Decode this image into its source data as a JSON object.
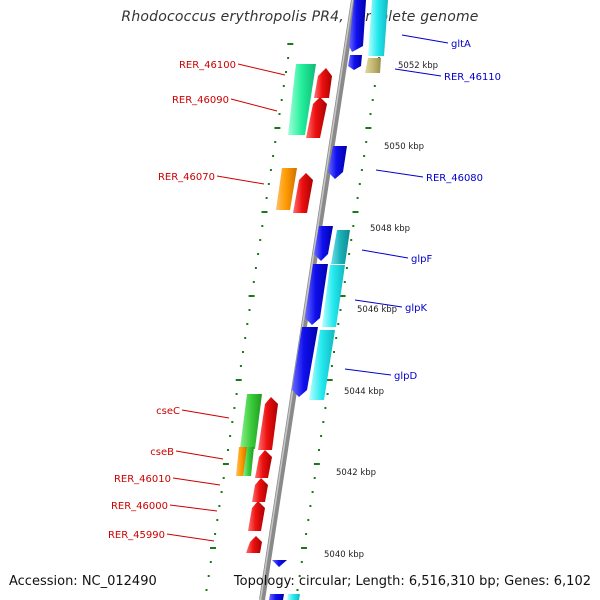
{
  "title": "Rhodococcus erythropolis PR4, complete genome",
  "footer": {
    "accession": "Accession: NC_012490",
    "stats": "Topology: circular; Length: 6,516,310 bp; Genes: 6,102"
  },
  "colors": {
    "forward_label": "#0000cc",
    "reverse_label": "#cc0000",
    "backbone": "#888888",
    "ticks": "#1a7a1a"
  },
  "kbp_labels": [
    "5052 kbp",
    "5050 kbp",
    "5048 kbp",
    "5046 kbp",
    "5044 kbp",
    "5042 kbp",
    "5040 kbp"
  ],
  "genes_left": [
    {
      "id": "RER_46100",
      "label": "RER_46100"
    },
    {
      "id": "RER_46090",
      "label": "RER_46090"
    },
    {
      "id": "RER_46070",
      "label": "RER_46070"
    },
    {
      "id": "cseC",
      "label": "cseC"
    },
    {
      "id": "cseB",
      "label": "cseB"
    },
    {
      "id": "RER_46010",
      "label": "RER_46010"
    },
    {
      "id": "RER_46000",
      "label": "RER_46000"
    },
    {
      "id": "RER_45990",
      "label": "RER_45990"
    }
  ],
  "genes_right": [
    {
      "id": "gltA",
      "label": "gltA"
    },
    {
      "id": "RER_46110",
      "label": "RER_46110"
    },
    {
      "id": "RER_46080",
      "label": "RER_46080"
    },
    {
      "id": "glpF",
      "label": "glpF"
    },
    {
      "id": "glpK",
      "label": "glpK"
    },
    {
      "id": "glpD",
      "label": "glpD"
    }
  ]
}
